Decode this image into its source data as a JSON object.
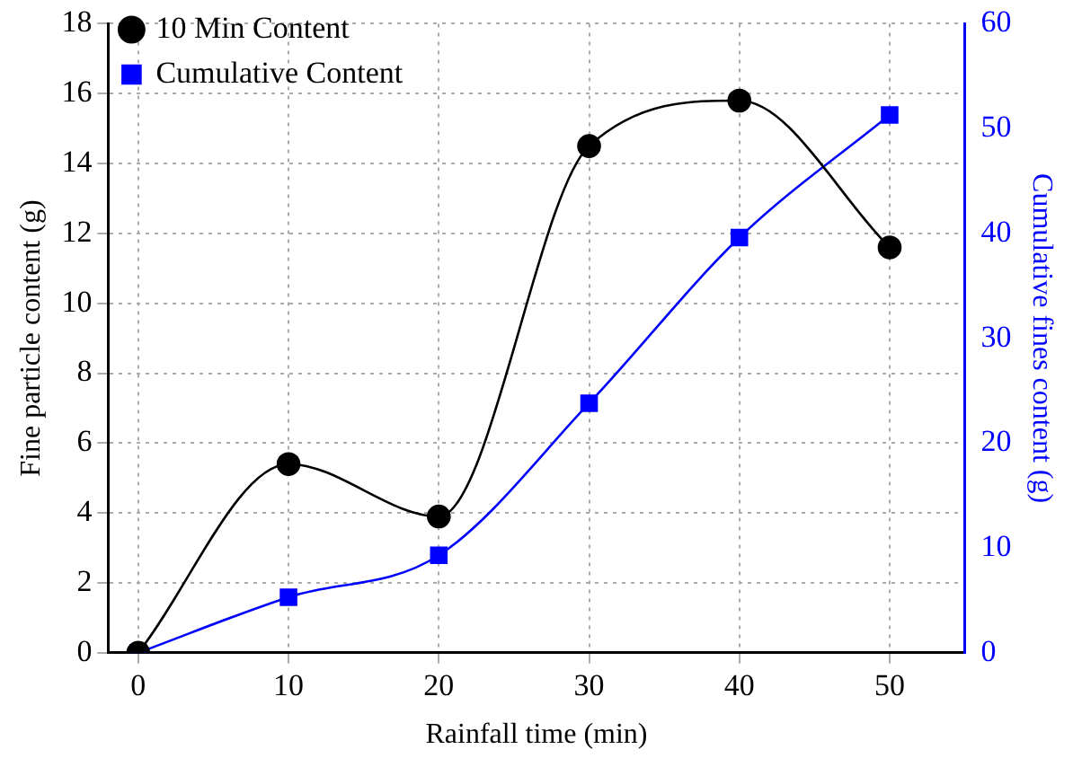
{
  "chart_data": {
    "type": "line",
    "xlabel": "Rainfall time (min)",
    "ylabel": "Fine particle content (g)",
    "y2label": "Cumulative fines content (g)",
    "x": [
      0,
      10,
      20,
      30,
      40,
      50
    ],
    "series": [
      {
        "name": "10 Min Content",
        "color": "#000000",
        "marker": "circle",
        "values": [
          0,
          5.4,
          3.9,
          14.5,
          15.8,
          11.6
        ]
      },
      {
        "name": "Cumulative Content",
        "color": "#0000ff",
        "marker": "square",
        "axis": "y2",
        "values": [
          0,
          5.3,
          9.3,
          23.8,
          39.6,
          51.3
        ]
      }
    ],
    "xlim": [
      -2,
      55
    ],
    "xticks": [
      0,
      10,
      20,
      30,
      40,
      50
    ],
    "ylim": [
      0,
      18
    ],
    "yticks": [
      0,
      2,
      4,
      6,
      8,
      10,
      12,
      14,
      16,
      18
    ],
    "y2lim": [
      0,
      60
    ],
    "y2ticks": [
      0,
      10,
      20,
      30,
      40,
      50,
      60
    ],
    "grid": true,
    "legend": "top left",
    "line_style": "solid"
  }
}
